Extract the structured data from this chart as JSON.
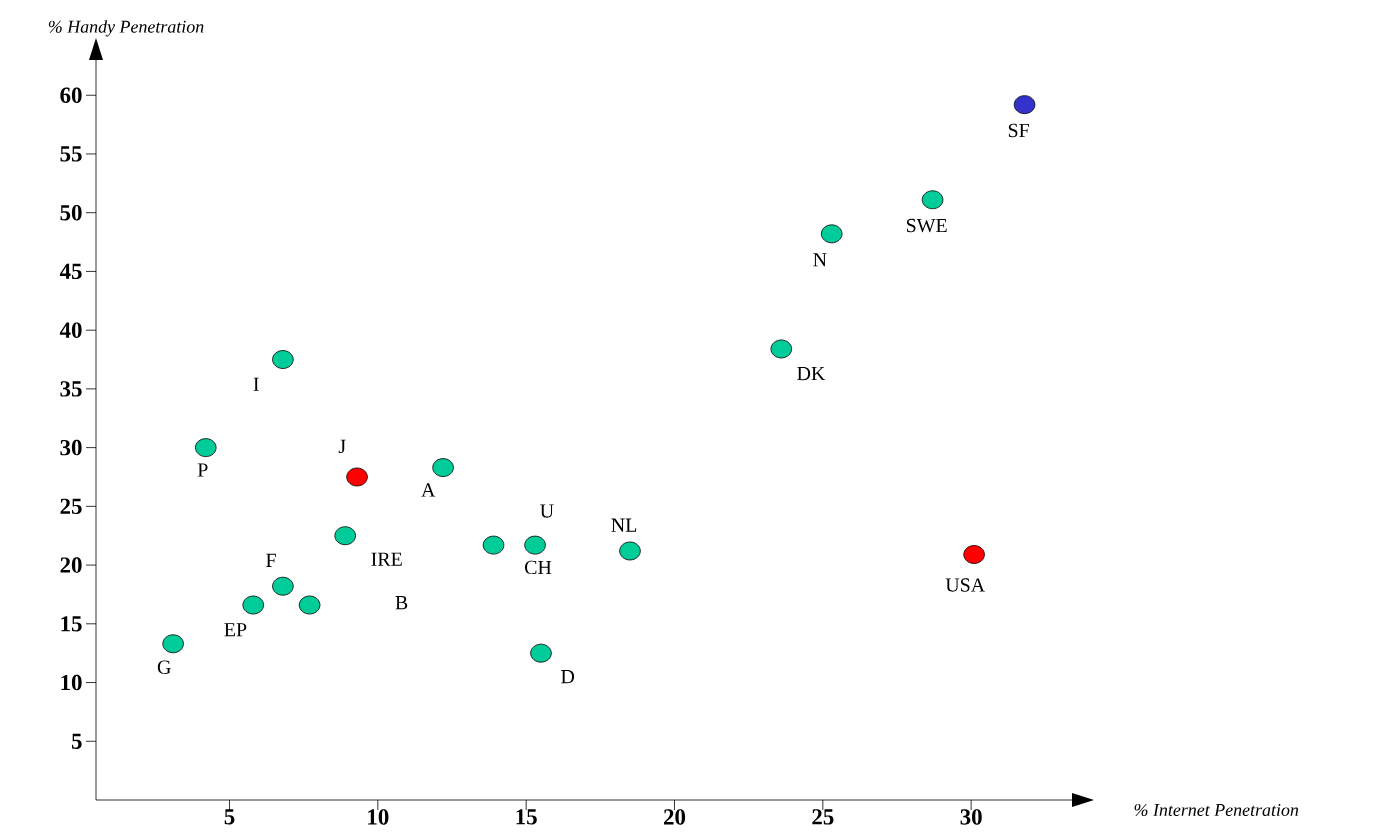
{
  "chart_data": {
    "type": "scatter",
    "xlabel": "% Internet Penetration",
    "ylabel": "% Handy Penetration",
    "x": [
      3.1,
      5.8,
      6.8,
      7.7,
      4.2,
      6.8,
      8.9,
      9.3,
      12.2,
      13.9,
      15.3,
      18.5,
      15.5,
      30.1,
      23.6,
      25.3,
      28.7,
      31.8
    ],
    "values": [
      13.3,
      16.6,
      18.2,
      16.6,
      30,
      37.5,
      22.5,
      27.5,
      28.3,
      21.7,
      21.7,
      21.2,
      12.5,
      20.9,
      38.4,
      48.2,
      51.1,
      59.2
    ],
    "colors": [
      "#00cc99",
      "#00cc99",
      "#00cc99",
      "#00cc99",
      "#00cc99",
      "#00cc99",
      "#00cc99",
      "#ff0000",
      "#00cc99",
      "#00cc99",
      "#00cc99",
      "#00cc99",
      "#00cc99",
      "#ff0000",
      "#00cc99",
      "#00cc99",
      "#00cc99",
      "#3333cc"
    ],
    "marker": "circle",
    "xlim": [
      0.5,
      33.4
    ],
    "ylim": [
      0,
      63
    ],
    "xticks": [
      5,
      10,
      15,
      20,
      25,
      30
    ],
    "yticks": [
      5,
      10,
      15,
      20,
      25,
      30,
      35,
      40,
      45,
      50,
      55,
      60
    ],
    "annotations": [
      "G",
      "EP",
      "F",
      "I",
      "P",
      "J",
      "IRE",
      "B",
      "A",
      "U",
      "CH",
      "NL",
      "D",
      "USA",
      "DK",
      "N",
      "SWE",
      "SF"
    ]
  }
}
